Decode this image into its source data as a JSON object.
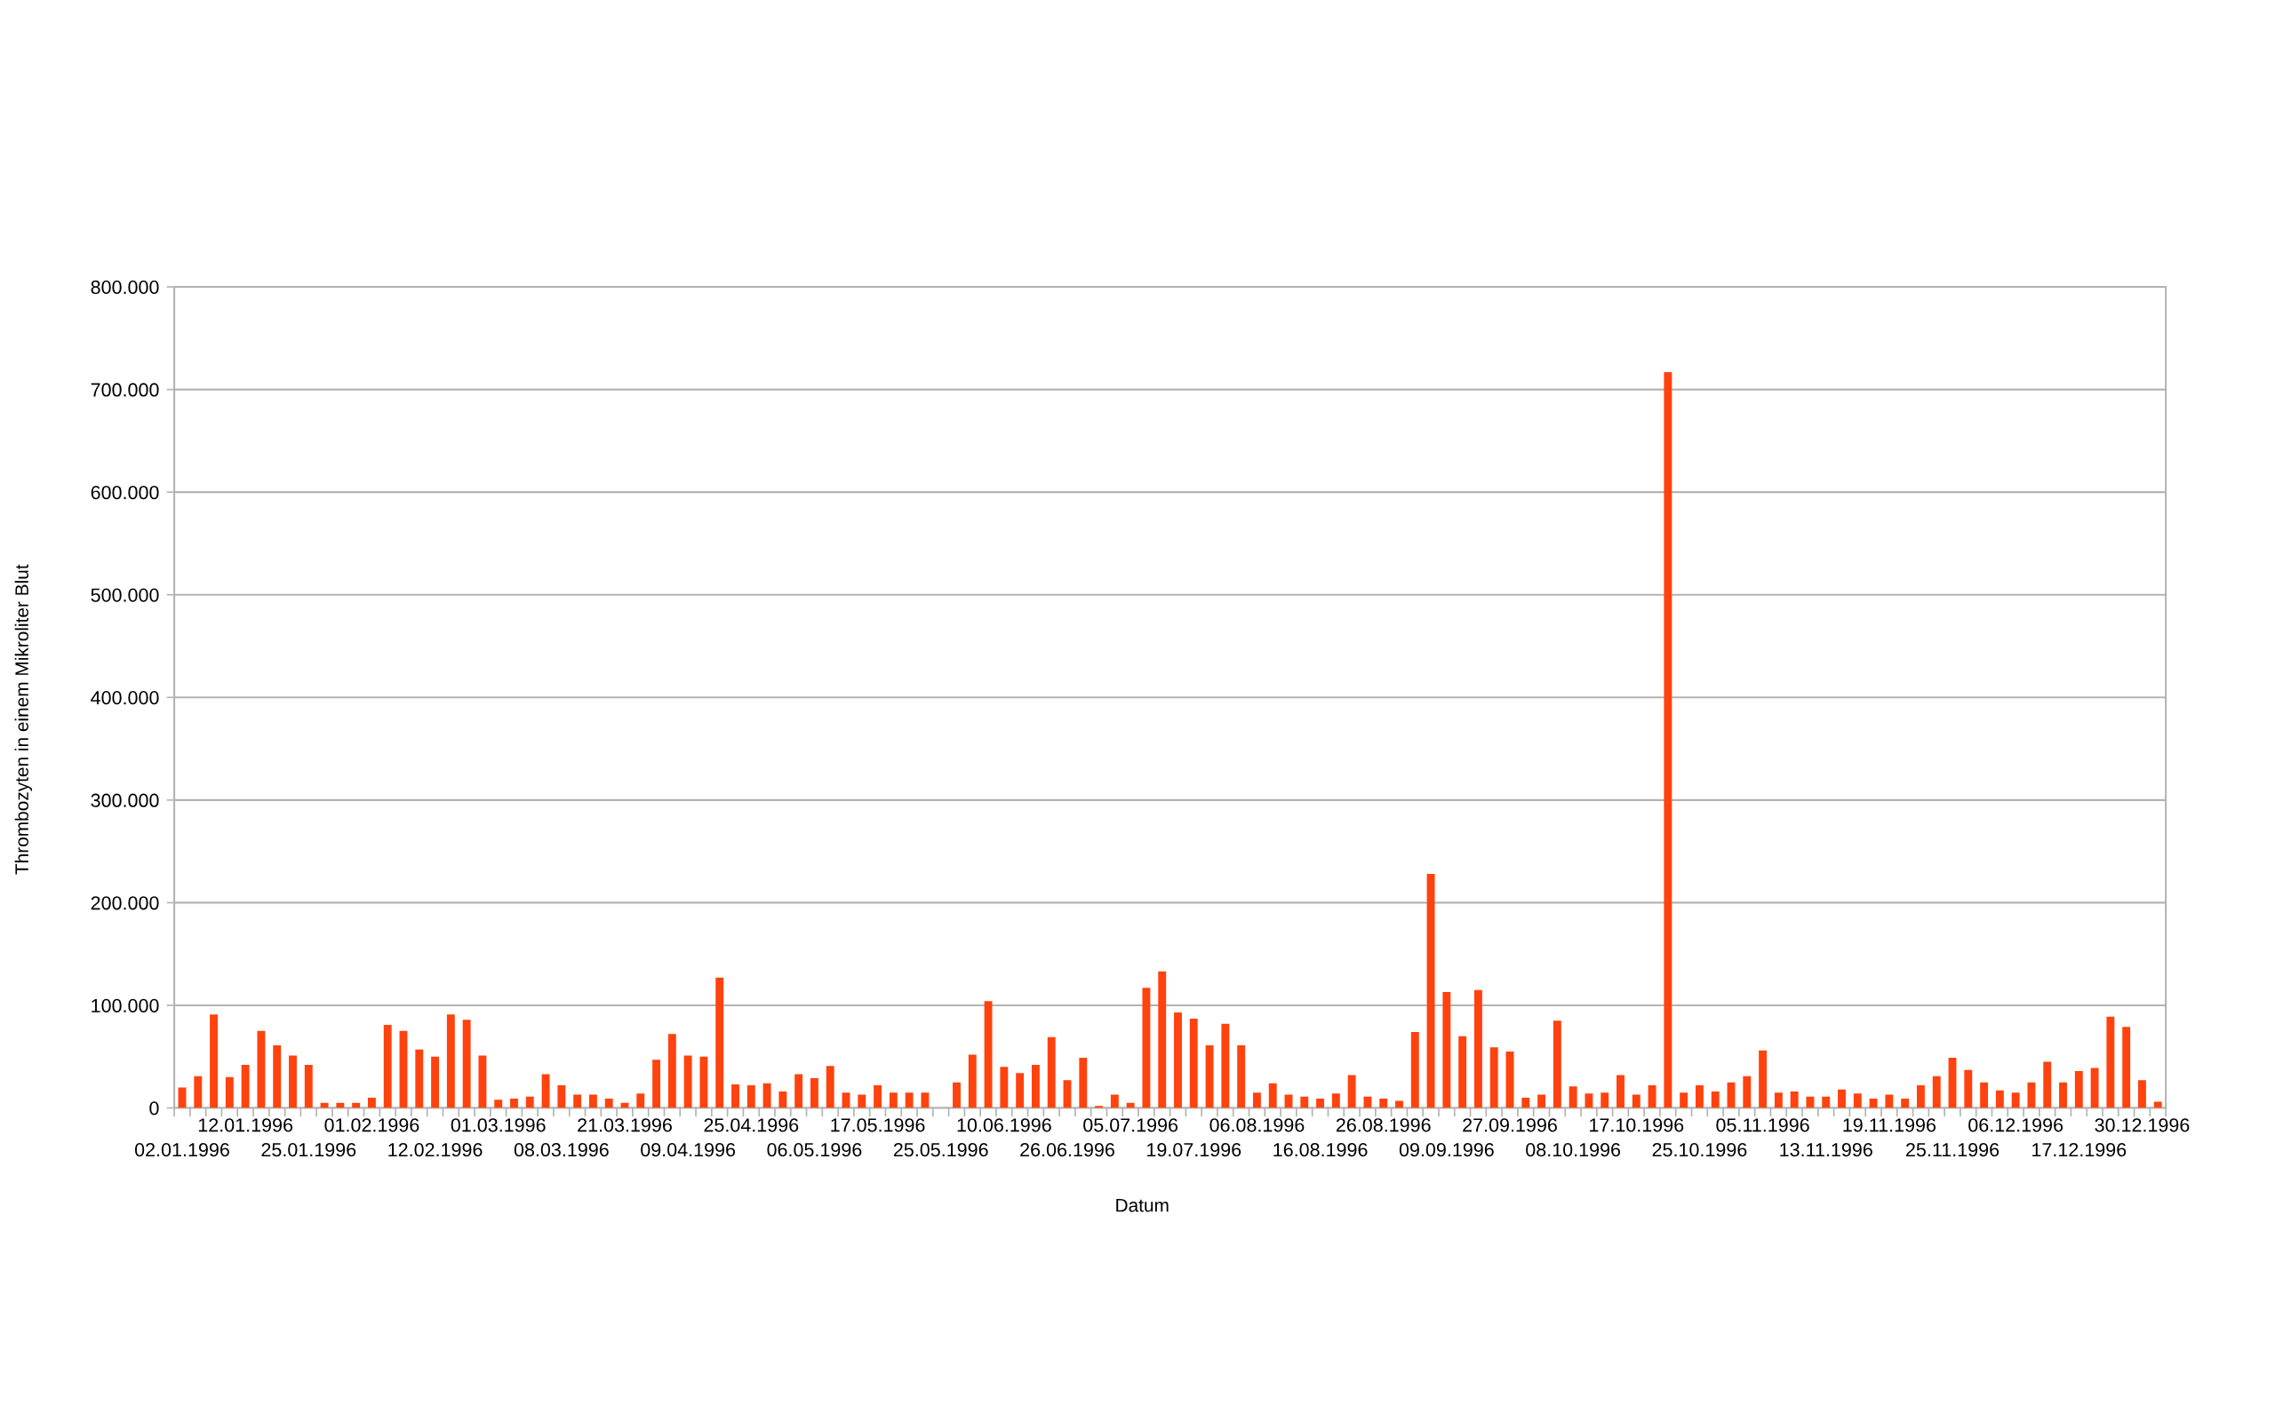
{
  "chart_data": {
    "type": "bar",
    "xlabel": "Datum",
    "ylabel": "Thrombozyten in einem Mikroliter Blut",
    "categories": [
      "02.01.1996",
      null,
      null,
      null,
      "12.01.1996",
      null,
      null,
      null,
      "25.01.1996",
      null,
      null,
      null,
      "01.02.1996",
      null,
      null,
      null,
      "12.02.1996",
      null,
      null,
      null,
      "01.03.1996",
      null,
      null,
      null,
      "08.03.1996",
      null,
      null,
      null,
      "21.03.1996",
      null,
      null,
      null,
      "09.04.1996",
      null,
      null,
      null,
      "25.04.1996",
      null,
      null,
      null,
      "06.05.1996",
      null,
      null,
      null,
      "17.05.1996",
      null,
      null,
      null,
      "25.05.1996",
      null,
      null,
      null,
      "10.06.1996",
      null,
      null,
      null,
      "26.06.1996",
      null,
      null,
      null,
      "05.07.1996",
      null,
      null,
      null,
      "19.07.1996",
      null,
      null,
      null,
      "06.08.1996",
      null,
      null,
      null,
      "16.08.1996",
      null,
      null,
      null,
      "26.08.1996",
      null,
      null,
      null,
      "09.09.1996",
      null,
      null,
      null,
      "27.09.1996",
      null,
      null,
      null,
      "08.10.1996",
      null,
      null,
      null,
      "17.10.1996",
      null,
      null,
      null,
      "25.10.1996",
      null,
      null,
      null,
      "05.11.1996",
      null,
      null,
      null,
      "13.11.1996",
      null,
      null,
      null,
      "19.11.1996",
      null,
      null,
      null,
      "25.11.1996",
      null,
      null,
      null,
      "06.12.1996",
      null,
      null,
      null,
      "17.12.1996",
      null,
      null,
      null,
      "30.12.1996",
      null
    ],
    "values": [
      20000,
      31000,
      91000,
      30000,
      42000,
      75000,
      61000,
      51000,
      42000,
      5000,
      5000,
      5000,
      10000,
      81000,
      75000,
      57000,
      50000,
      91000,
      86000,
      51000,
      8000,
      9000,
      11000,
      33000,
      22000,
      13000,
      13000,
      9000,
      5000,
      14000,
      47000,
      72000,
      51000,
      50000,
      127000,
      23000,
      22000,
      24000,
      16000,
      33000,
      29000,
      41000,
      15000,
      13000,
      22000,
      15000,
      15000,
      15000,
      null,
      25000,
      52000,
      104000,
      40000,
      34000,
      42000,
      69000,
      27000,
      49000,
      2000,
      13000,
      5000,
      117000,
      133000,
      93000,
      87000,
      61000,
      82000,
      61000,
      15000,
      24000,
      13000,
      11000,
      9000,
      14000,
      32000,
      11000,
      9000,
      7000,
      74000,
      228000,
      113000,
      70000,
      115000,
      59000,
      55000,
      10000,
      13000,
      85000,
      21000,
      14000,
      15000,
      32000,
      13000,
      22000,
      717000,
      15000,
      22000,
      16000,
      25000,
      31000,
      56000,
      15000,
      16000,
      11000,
      11000,
      18000,
      14000,
      9000,
      13000,
      9000,
      22000,
      31000,
      49000,
      37000,
      25000,
      17000,
      15000,
      25000,
      45000,
      25000,
      36000,
      39000,
      89000,
      79000,
      27000,
      6000
    ],
    "color": "#ff420e",
    "ylim": [
      0,
      800000
    ],
    "yticks": [
      0,
      {
        "value": 100000,
        "label": "100.000"
      },
      {
        "value": 200000,
        "label": "200.000"
      },
      {
        "value": 300000,
        "label": "300.000"
      },
      {
        "value": 400000,
        "label": "400.000"
      },
      {
        "value": 500000,
        "label": "500.000"
      },
      {
        "value": 600000,
        "label": "600.000"
      },
      {
        "value": 700000,
        "label": "700.000"
      },
      {
        "value": 800000,
        "label": "800.000"
      }
    ],
    "grid": "y"
  }
}
